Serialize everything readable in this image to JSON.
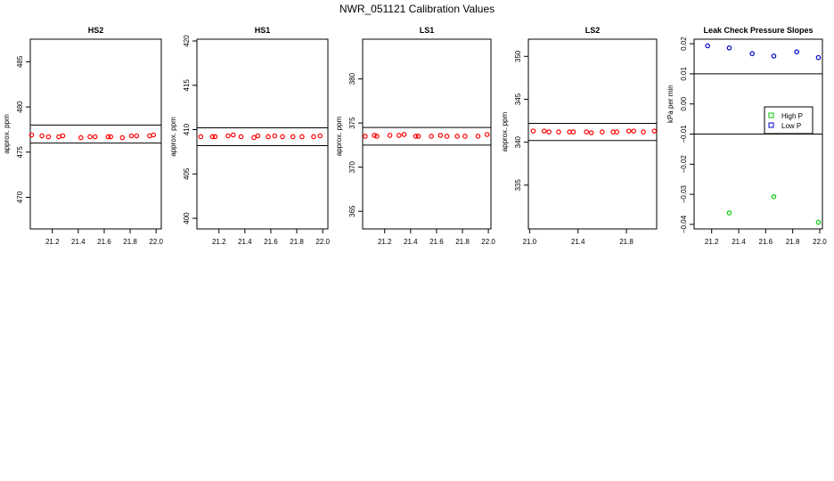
{
  "figure": {
    "title": "NWR_051121  Calibration Values"
  },
  "chart_data": [
    {
      "type": "scatter",
      "title": "HS2",
      "ylabel": "approx. ppm",
      "xlim": [
        21.03,
        22.04
      ],
      "ylim": [
        466.5,
        487.5
      ],
      "x_ticks": [
        21.2,
        21.4,
        21.6,
        21.8,
        22.0
      ],
      "x_tick_labels": [
        "21.2",
        "21.4",
        "21.6",
        "21.8",
        "22.0"
      ],
      "y_ticks": [
        470,
        475,
        480,
        485
      ],
      "y_tick_labels": [
        "470",
        "475",
        "480",
        "485"
      ],
      "hlines": [
        478.0,
        476.0
      ],
      "colors": {
        "points": "#ff0000",
        "lines": "#000000"
      },
      "series": [
        {
          "x": [
            21.04,
            21.12,
            21.17,
            21.25,
            21.28,
            21.42,
            21.49,
            21.53,
            21.63,
            21.65,
            21.74,
            21.81,
            21.85,
            21.95,
            21.98
          ],
          "y": [
            476.9,
            476.8,
            476.7,
            476.7,
            476.8,
            476.6,
            476.7,
            476.7,
            476.7,
            476.7,
            476.6,
            476.8,
            476.8,
            476.8,
            476.9
          ]
        }
      ]
    },
    {
      "type": "scatter",
      "title": "HS1",
      "ylabel": "approx. ppm",
      "xlim": [
        21.03,
        22.04
      ],
      "ylim": [
        398.8,
        420.2
      ],
      "x_ticks": [
        21.2,
        21.4,
        21.6,
        21.8,
        22.0
      ],
      "x_tick_labels": [
        "21.2",
        "21.4",
        "21.6",
        "21.8",
        "22.0"
      ],
      "y_ticks": [
        400,
        405,
        410,
        415,
        420
      ],
      "y_tick_labels": [
        "400",
        "405",
        "410",
        "415",
        "420"
      ],
      "hlines": [
        410.2,
        408.2
      ],
      "colors": {
        "points": "#ff0000",
        "lines": "#000000"
      },
      "series": [
        {
          "x": [
            21.06,
            21.15,
            21.17,
            21.27,
            21.31,
            21.37,
            21.47,
            21.5,
            21.58,
            21.63,
            21.69,
            21.77,
            21.84,
            21.93,
            21.98
          ],
          "y": [
            409.2,
            409.2,
            409.2,
            409.3,
            409.4,
            409.2,
            409.1,
            409.3,
            409.2,
            409.3,
            409.2,
            409.2,
            409.2,
            409.2,
            409.3
          ]
        }
      ]
    },
    {
      "type": "scatter",
      "title": "LS1",
      "ylabel": "approx. ppm",
      "xlim": [
        21.03,
        22.02
      ],
      "ylim": [
        363.0,
        384.5
      ],
      "x_ticks": [
        21.2,
        21.4,
        21.6,
        21.8,
        22.0
      ],
      "x_tick_labels": [
        "21.2",
        "21.4",
        "21.6",
        "21.8",
        "22.0"
      ],
      "y_ticks": [
        365,
        370,
        375,
        380
      ],
      "y_tick_labels": [
        "365",
        "370",
        "375",
        "380"
      ],
      "hlines": [
        374.5,
        372.5
      ],
      "colors": {
        "points": "#ff0000",
        "lines": "#000000"
      },
      "series": [
        {
          "x": [
            21.05,
            21.12,
            21.14,
            21.24,
            21.31,
            21.35,
            21.44,
            21.46,
            21.56,
            21.63,
            21.68,
            21.76,
            21.82,
            21.92,
            21.99
          ],
          "y": [
            373.5,
            373.6,
            373.5,
            373.6,
            373.6,
            373.7,
            373.5,
            373.5,
            373.5,
            373.6,
            373.5,
            373.5,
            373.5,
            373.5,
            373.7
          ]
        }
      ]
    },
    {
      "type": "scatter",
      "title": "LS2",
      "ylabel": "approx. ppm",
      "xlim": [
        20.99,
        22.05
      ],
      "ylim": [
        329.9,
        352.0
      ],
      "x_ticks": [
        21.0,
        21.4,
        21.8
      ],
      "x_tick_labels": [
        "21.0",
        "21.4",
        "21.8"
      ],
      "y_ticks": [
        335,
        340,
        345,
        350
      ],
      "y_tick_labels": [
        "335",
        "340",
        "345",
        "350"
      ],
      "hlines": [
        342.2,
        340.2
      ],
      "colors": {
        "points": "#ff0000",
        "lines": "#000000"
      },
      "series": [
        {
          "x": [
            21.03,
            21.12,
            21.16,
            21.24,
            21.33,
            21.36,
            21.47,
            21.51,
            21.6,
            21.69,
            21.72,
            21.82,
            21.86,
            21.94,
            22.03
          ],
          "y": [
            341.3,
            341.3,
            341.2,
            341.2,
            341.2,
            341.2,
            341.2,
            341.1,
            341.2,
            341.2,
            341.2,
            341.3,
            341.3,
            341.2,
            341.3
          ]
        }
      ]
    },
    {
      "type": "scatter",
      "title": "Leak Check Pressure Slopes",
      "ylabel": "kPa per min",
      "xlim": [
        21.07,
        22.02
      ],
      "ylim": [
        -0.0415,
        0.0215
      ],
      "x_ticks": [
        21.2,
        21.4,
        21.6,
        21.8,
        22.0
      ],
      "x_tick_labels": [
        "21.2",
        "21.4",
        "21.6",
        "21.8",
        "22.0"
      ],
      "y_ticks": [
        -0.04,
        -0.03,
        -0.02,
        -0.01,
        0.0,
        0.01,
        0.02
      ],
      "y_tick_labels": [
        "−0.04",
        "−0.03",
        "−0.02",
        "−0.01",
        "0.00",
        "0.01",
        "0.02"
      ],
      "hlines": [
        0.01,
        -0.01
      ],
      "legend": {
        "placement": "right",
        "entries": [
          "High P",
          "Low P"
        ]
      },
      "colors": {
        "High P": "#00cc00",
        "Low P": "#0000cc",
        "lines": "#000000"
      },
      "series": [
        {
          "name": "High P",
          "x": [
            21.33,
            21.66,
            21.99
          ],
          "y": [
            -0.0362,
            -0.0308,
            -0.0393
          ]
        },
        {
          "name": "Low P",
          "x": [
            21.17,
            21.33,
            21.5,
            21.66,
            21.83,
            21.99
          ],
          "y": [
            0.0193,
            0.0186,
            0.0167,
            0.0159,
            0.0173,
            0.0154
          ]
        }
      ]
    }
  ]
}
